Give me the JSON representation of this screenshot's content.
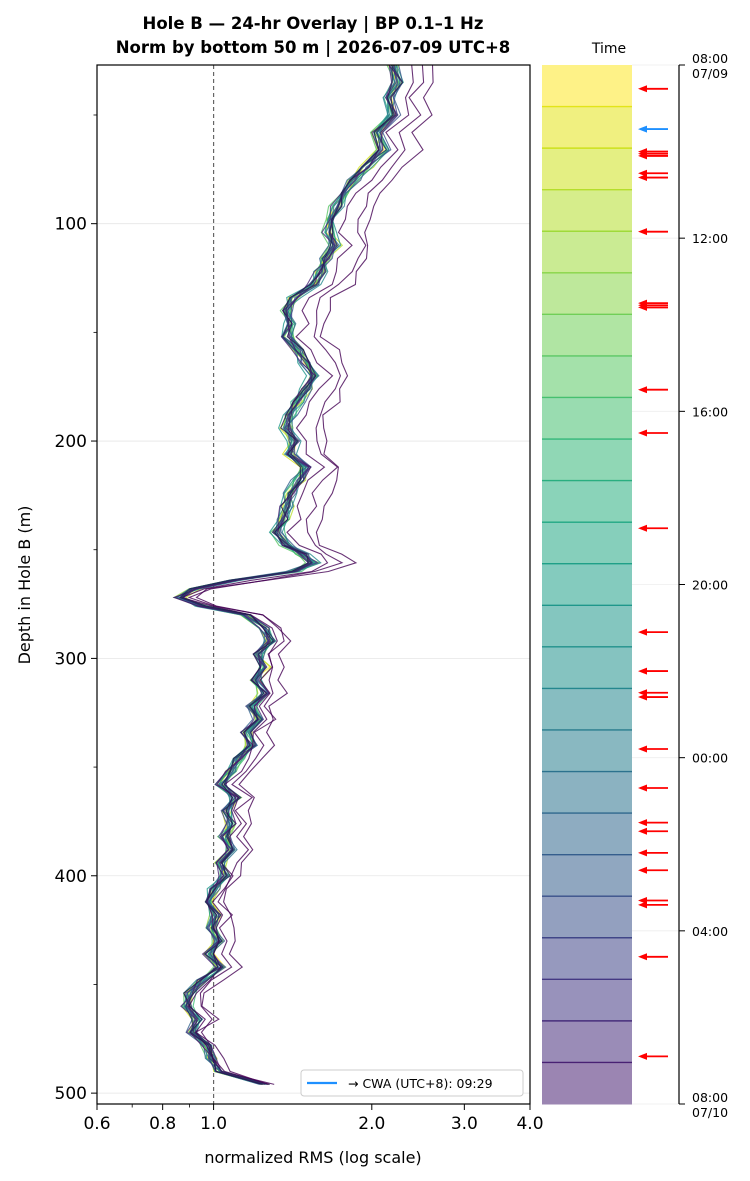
{
  "chart_data": {
    "type": "line",
    "title_line1": "Hole B — 24-hr Overlay  |  BP 0.1–1 Hz",
    "title_line2": "Norm by bottom 50 m  |  2026-07-09 UTC+8",
    "xlabel": "normalized RMS  (log scale)",
    "ylabel": "Depth in Hole B (m)",
    "x_scale": "log",
    "xlim": [
      0.6,
      4.0
    ],
    "ylim": [
      505,
      27
    ],
    "x_ticks": [
      {
        "value": 0.6,
        "label": "0.6"
      },
      {
        "value": 0.8,
        "label": "0.8"
      },
      {
        "value": 1.0,
        "label": "1.0"
      },
      {
        "value": 2.0,
        "label": "2.0"
      },
      {
        "value": 3.0,
        "label": "3.0"
      },
      {
        "value": 4.0,
        "label": "4.0"
      }
    ],
    "x_minor_ticks": [
      0.7,
      0.9
    ],
    "y_ticks": [
      {
        "value": 100,
        "label": "100"
      },
      {
        "value": 200,
        "label": "200"
      },
      {
        "value": 300,
        "label": "300"
      },
      {
        "value": 400,
        "label": "400"
      },
      {
        "value": 500,
        "label": "500"
      }
    ],
    "y_minor_ticks": [
      50,
      150,
      250,
      350,
      450
    ],
    "grid": true,
    "reference_line": {
      "x": 1.0,
      "style": "dashed"
    },
    "legend": {
      "label": "→ CWA (UTC+8): 09:29",
      "color": "#1e90ff",
      "placement": "lower-right"
    },
    "profile": {
      "depth": [
        27,
        35,
        42,
        50,
        58,
        66,
        74,
        80,
        86,
        92,
        98,
        104,
        110,
        116,
        122,
        128,
        134,
        140,
        146,
        152,
        158,
        164,
        170,
        176,
        182,
        188,
        194,
        200,
        206,
        212,
        218,
        224,
        230,
        236,
        242,
        248,
        252,
        256,
        260,
        264,
        268,
        272,
        276,
        280,
        286,
        292,
        298,
        304,
        310,
        316,
        322,
        328,
        334,
        340,
        346,
        352,
        358,
        364,
        370,
        376,
        382,
        388,
        394,
        400,
        406,
        412,
        418,
        424,
        430,
        436,
        442,
        448,
        454,
        460,
        466,
        472,
        478,
        484,
        490,
        496
      ],
      "rms": [
        2.2,
        2.25,
        2.15,
        2.2,
        2.05,
        2.1,
        1.95,
        1.85,
        1.75,
        1.72,
        1.68,
        1.66,
        1.7,
        1.64,
        1.6,
        1.55,
        1.42,
        1.38,
        1.4,
        1.38,
        1.45,
        1.5,
        1.55,
        1.5,
        1.45,
        1.4,
        1.38,
        1.42,
        1.4,
        1.5,
        1.45,
        1.4,
        1.38,
        1.36,
        1.32,
        1.38,
        1.48,
        1.55,
        1.42,
        1.1,
        0.92,
        0.86,
        0.95,
        1.15,
        1.25,
        1.28,
        1.22,
        1.25,
        1.2,
        1.25,
        1.18,
        1.22,
        1.15,
        1.18,
        1.12,
        1.08,
        1.03,
        1.1,
        1.06,
        1.08,
        1.05,
        1.08,
        1.03,
        1.05,
        1.0,
        0.98,
        1.01,
        0.99,
        1.02,
        0.98,
        1.03,
        0.95,
        0.9,
        0.89,
        0.93,
        0.91,
        0.97,
        0.99,
        1.02,
        1.25
      ]
    },
    "traces": [
      {
        "hour": 8.0,
        "offset": 1.0,
        "color": "#fde725"
      },
      {
        "hour": 9.0,
        "offset": 0.99,
        "color": "#d2e21b"
      },
      {
        "hour": 10.0,
        "offset": 1.01,
        "color": "#b5de2b"
      },
      {
        "hour": 11.0,
        "offset": 0.995,
        "color": "#95d840"
      },
      {
        "hour": 12.0,
        "offset": 1.005,
        "color": "#75d054"
      },
      {
        "hour": 13.0,
        "offset": 0.985,
        "color": "#57c665"
      },
      {
        "hour": 14.0,
        "offset": 1.012,
        "color": "#3dbc74"
      },
      {
        "hour": 15.0,
        "offset": 0.992,
        "color": "#29af7f"
      },
      {
        "hour": 16.0,
        "offset": 1.002,
        "color": "#20a386"
      },
      {
        "hour": 17.0,
        "offset": 0.988,
        "color": "#1f978b"
      },
      {
        "hour": 18.0,
        "offset": 1.008,
        "color": "#238a8d"
      },
      {
        "hour": 19.0,
        "offset": 0.996,
        "color": "#287d8e"
      },
      {
        "hour": 20.0,
        "offset": 1.004,
        "color": "#2d708e"
      },
      {
        "hour": 21.0,
        "offset": 0.99,
        "color": "#33638d"
      },
      {
        "hour": 22.0,
        "offset": 1.01,
        "color": "#39568c"
      },
      {
        "hour": 23.0,
        "offset": 0.998,
        "color": "#404688"
      },
      {
        "hour": 0.0,
        "offset": 1.003,
        "color": "#453781"
      },
      {
        "hour": 1.0,
        "offset": 0.993,
        "color": "#482677"
      },
      {
        "hour": 2.0,
        "offset": 1.0,
        "color": "#481467"
      },
      {
        "hour": 3.0,
        "offset": 1.06,
        "color": "#440154"
      },
      {
        "hour": 4.0,
        "offset": 1.12,
        "color": "#440154"
      },
      {
        "hour": 5.0,
        "offset": 1.18,
        "color": "#440154"
      },
      {
        "hour": 6.0,
        "offset": 0.997,
        "color": "#1f1a4a"
      },
      {
        "hour": 7.0,
        "offset": 1.002,
        "color": "#23305e"
      }
    ],
    "colorbar": {
      "label": "Time",
      "bands": [
        "#fde725",
        "#e3e418",
        "#cde11d",
        "#b5de2b",
        "#9fda3a",
        "#88d548",
        "#70cf57",
        "#5ac864",
        "#46c06f",
        "#35b779",
        "#2aae80",
        "#22a884",
        "#1fa088",
        "#1f978b",
        "#21918c",
        "#24878e",
        "#287d8e",
        "#2c728e",
        "#31688e",
        "#355e8d",
        "#3b528b",
        "#404688",
        "#443983",
        "#472d7b",
        "#482173"
      ],
      "ticks": [
        {
          "hour": 0,
          "label": "08:00",
          "label2": "07/09"
        },
        {
          "hour": 4,
          "label": "12:00",
          "label2": ""
        },
        {
          "hour": 8,
          "label": "16:00",
          "label2": ""
        },
        {
          "hour": 12,
          "label": "20:00",
          "label2": ""
        },
        {
          "hour": 16,
          "label": "00:00",
          "label2": ""
        },
        {
          "hour": 20,
          "label": "04:00",
          "label2": ""
        },
        {
          "hour": 24,
          "label": "08:00",
          "label2": "07/10"
        }
      ],
      "event_arrows_hours": [
        0.55,
        2.0,
        2.05,
        2.1,
        2.5,
        2.6,
        3.85,
        5.5,
        5.55,
        5.6,
        7.5,
        8.5,
        10.7,
        13.1,
        14.0,
        14.5,
        14.6,
        15.8,
        16.7,
        17.5,
        17.7,
        18.2,
        18.6,
        19.3,
        19.4,
        20.6,
        22.9
      ],
      "cwa_arrow_hour": 1.48,
      "event_color": "#ff0000",
      "cwa_color": "#1e90ff"
    }
  }
}
